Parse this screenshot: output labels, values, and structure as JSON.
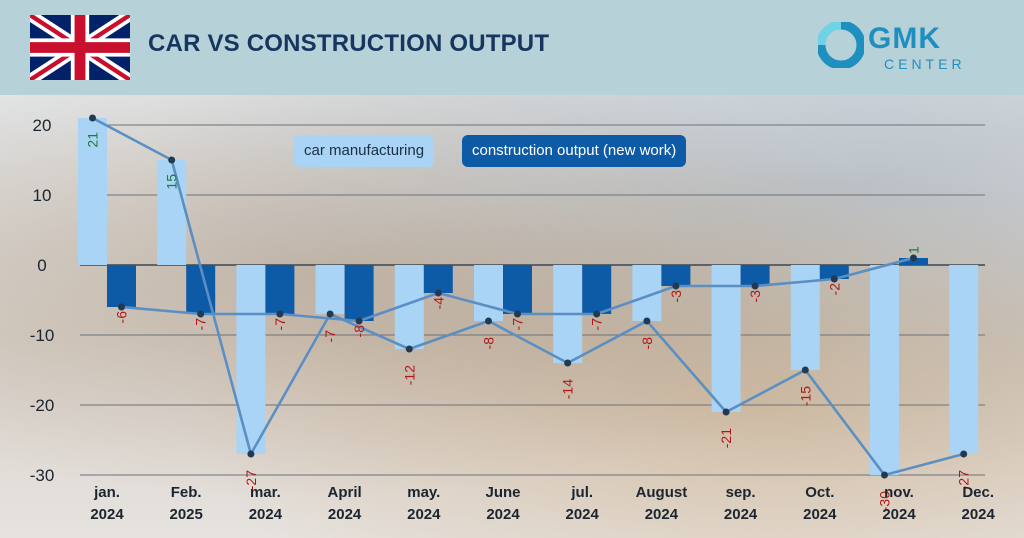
{
  "header": {
    "title": "CAR VS CONSTRUCTION OUTPUT",
    "logo_name": "GMK",
    "logo_sub": "CENTER"
  },
  "colors": {
    "car": "#a9d4f5",
    "construction": "#0d5aa7",
    "line": "#5b8fc4",
    "negative_label": "#b01818",
    "positive_label": "#1f7a3a",
    "title": "#17365f",
    "brand": "#1f8fc0"
  },
  "legend": {
    "car": "car manufacturing",
    "construction": "construction output (new work)"
  },
  "chart_data": {
    "type": "bar",
    "categories": [
      [
        "jan.",
        "2024"
      ],
      [
        "Feb.",
        "2025"
      ],
      [
        "mar.",
        "2024"
      ],
      [
        "April",
        "2024"
      ],
      [
        "may.",
        "2024"
      ],
      [
        "June",
        "2024"
      ],
      [
        "jul.",
        "2024"
      ],
      [
        "August",
        "2024"
      ],
      [
        "sep.",
        "2024"
      ],
      [
        "Oct.",
        "2024"
      ],
      [
        "nov.",
        "2024"
      ],
      [
        "Dec.",
        "2024"
      ]
    ],
    "series": [
      {
        "name": "car manufacturing",
        "values": [
          21,
          15,
          -27,
          -7,
          -12,
          -8,
          -14,
          -8,
          -21,
          -15,
          -30,
          -27
        ]
      },
      {
        "name": "construction output (new work)",
        "values": [
          -6,
          -7,
          -7,
          -8,
          -4,
          -7,
          -7,
          -3,
          -3,
          -2,
          1,
          null
        ]
      }
    ],
    "bar_labels": [
      [
        "21",
        "15",
        "-27",
        "-7",
        "-12",
        "-8",
        "-14",
        "-8",
        "-21",
        "-15",
        "-30",
        "-27"
      ],
      [
        "-6",
        "-7",
        "-7",
        "-8",
        "-4",
        "-7",
        "-7",
        "-3",
        "-3",
        "-2",
        "1",
        ""
      ]
    ],
    "yticks": [
      "20",
      "10",
      "0",
      "-10",
      "-20",
      "-30"
    ],
    "ytick_values": [
      20,
      10,
      0,
      -10,
      -20,
      -30
    ],
    "ylim": [
      -33,
      22
    ],
    "xlabel": "",
    "ylabel": "",
    "grid": true,
    "legend": "top-left"
  }
}
